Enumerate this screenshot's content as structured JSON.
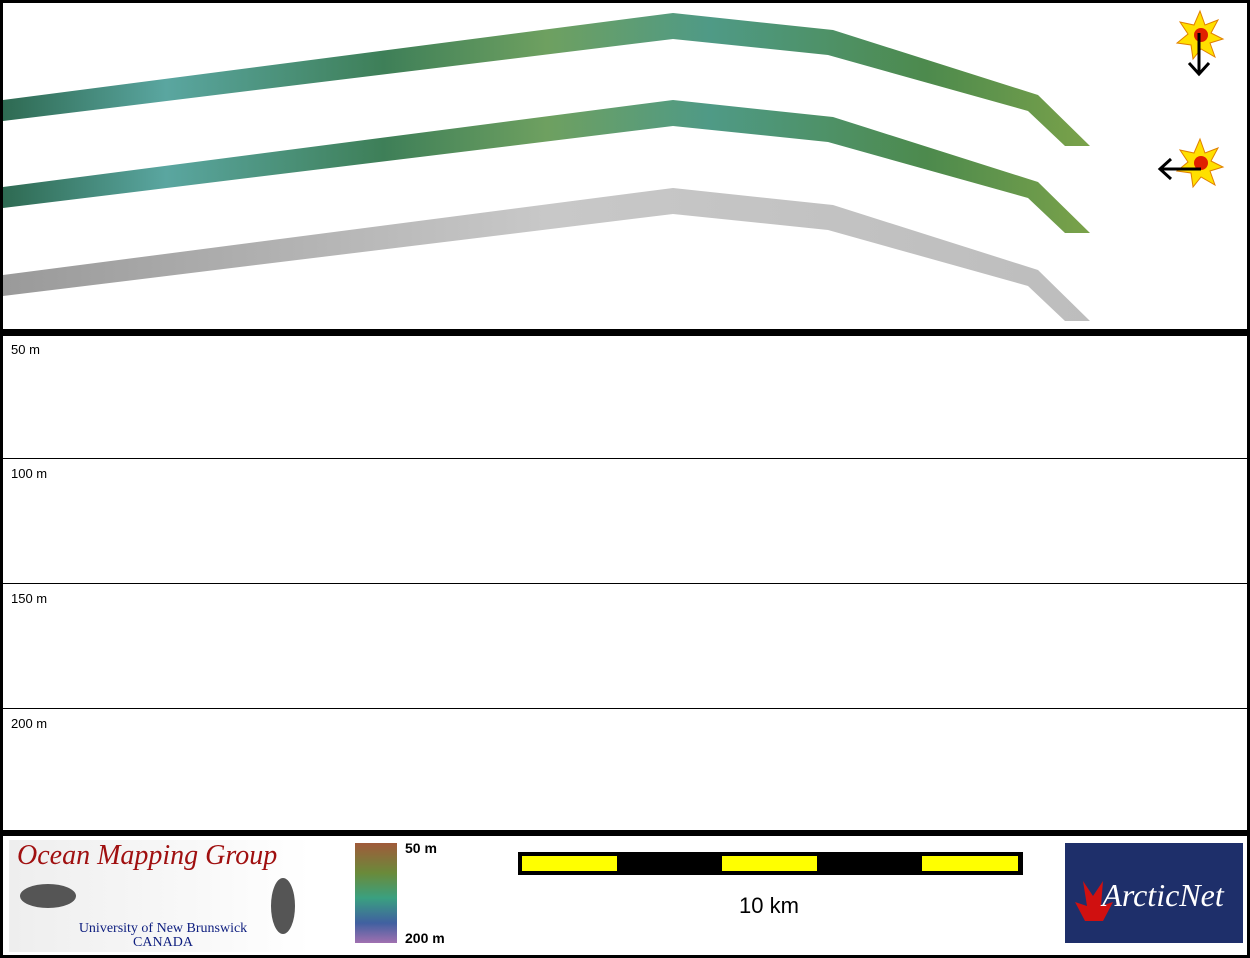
{
  "depth_panel": {
    "labels": [
      "50 m",
      "100 m",
      "150 m",
      "200 m"
    ]
  },
  "footer": {
    "logo_left": {
      "title": "Ocean Mapping Group",
      "line1": "University of New Brunswick",
      "line2": "CANADA"
    },
    "colorbar": {
      "top": "50 m",
      "bottom": "200 m"
    },
    "scale_bar": {
      "label": "10 km"
    },
    "logo_right": {
      "title": "ArcticNet"
    }
  }
}
